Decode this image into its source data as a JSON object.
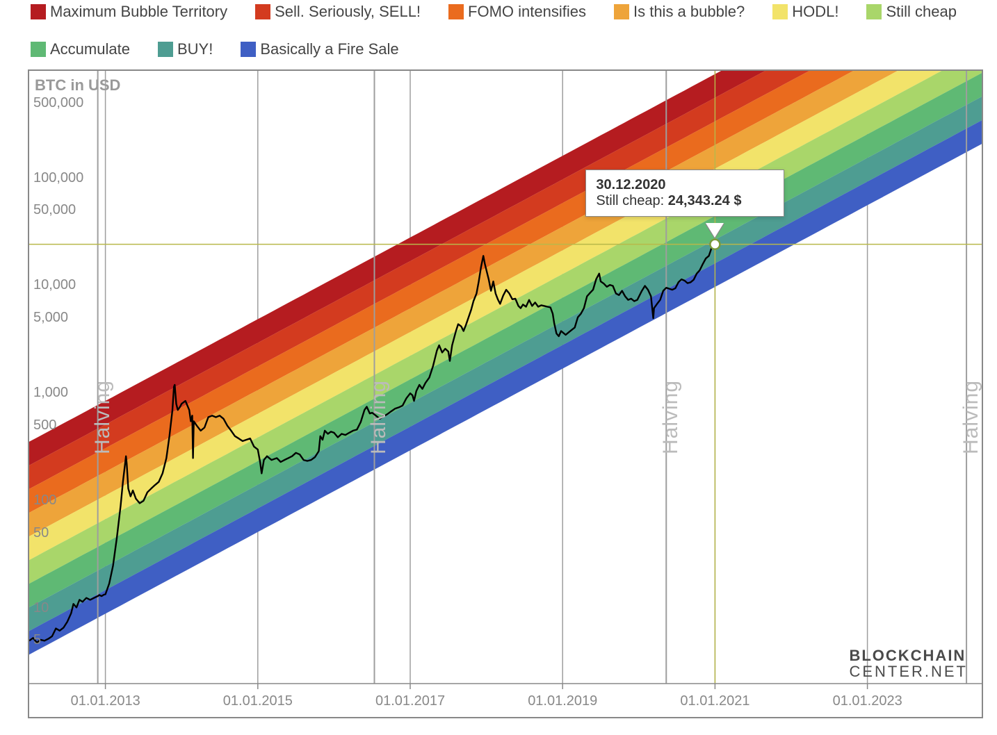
{
  "chart": {
    "type": "rainbow-log-bands",
    "axis_title": "BTC in USD",
    "background_color": "#ffffff",
    "grid_color": "#9e9e9e",
    "border_color": "#888888",
    "crosshair_color": "#b8b84a",
    "price_line_color": "#000000",
    "price_line_width": 2.4,
    "halving_text": "Halving",
    "halving_color": "#bcbcbc",
    "watermark_line1": "BLOCKCHAIN",
    "watermark_line2": "CENTER.NET",
    "x": {
      "min": 2012.0,
      "max": 2024.5,
      "ticks": [
        2013.0,
        2015.0,
        2017.0,
        2019.0,
        2021.0,
        2023.0
      ],
      "tick_labels": [
        "01.01.2013",
        "01.01.2015",
        "01.01.2017",
        "01.01.2019",
        "01.01.2021",
        "01.01.2023"
      ],
      "halvings": [
        2012.9,
        2016.53,
        2020.36,
        2024.3
      ]
    },
    "y": {
      "log_min": 0.3,
      "log_max": 6.0,
      "ticks": [
        5,
        10,
        50,
        100,
        500,
        1000,
        5000,
        10000,
        50000,
        100000,
        500000
      ],
      "tick_labels": [
        "5",
        "10",
        "50",
        "100",
        "500",
        "1,000",
        "5,000",
        "10,000",
        "50,000",
        "100,000",
        "500,000"
      ]
    },
    "bands": [
      {
        "label": "Maximum Bubble Territory",
        "color": "#b51c20"
      },
      {
        "label": "Sell. Seriously, SELL!",
        "color": "#d33b1f"
      },
      {
        "label": "FOMO intensifies",
        "color": "#ea6b1e"
      },
      {
        "label": "Is this a bubble?",
        "color": "#eea43a"
      },
      {
        "label": "HODL!",
        "color": "#f2e36a"
      },
      {
        "label": "Still cheap",
        "color": "#a9d66a"
      },
      {
        "label": "Accumulate",
        "color": "#5fb974"
      },
      {
        "label": "BUY!",
        "color": "#4e9d92"
      },
      {
        "label": "Basically a Fire Sale",
        "color": "#3f5fc4"
      }
    ],
    "band_regression": {
      "slope_log10_per_year": 0.38,
      "top_intercept_log10_at_2012": 2.55,
      "band_width_log10": 0.22
    },
    "tooltip": {
      "date": "30.12.2020",
      "series_label": "Still cheap",
      "value": "24,343.24 $",
      "x_year": 2021.0,
      "y_value": 24343.24
    },
    "fontsize_tick": 20,
    "fontsize_legend": 22,
    "fontsize_axis_title": 22
  },
  "price_series": [
    [
      2012.0,
      5.0
    ],
    [
      2012.05,
      5.3
    ],
    [
      2012.1,
      4.8
    ],
    [
      2012.15,
      5.1
    ],
    [
      2012.2,
      5.0
    ],
    [
      2012.25,
      5.2
    ],
    [
      2012.3,
      5.5
    ],
    [
      2012.35,
      6.5
    ],
    [
      2012.4,
      6.2
    ],
    [
      2012.45,
      6.6
    ],
    [
      2012.5,
      7.5
    ],
    [
      2012.55,
      9.0
    ],
    [
      2012.58,
      11.0
    ],
    [
      2012.62,
      10.2
    ],
    [
      2012.66,
      12.0
    ],
    [
      2012.7,
      11.5
    ],
    [
      2012.75,
      12.5
    ],
    [
      2012.8,
      12.0
    ],
    [
      2012.85,
      12.5
    ],
    [
      2012.9,
      13.0
    ],
    [
      2012.92,
      13.3
    ],
    [
      2012.95,
      13.0
    ],
    [
      2012.98,
      13.4
    ],
    [
      2013.0,
      13.5
    ],
    [
      2013.05,
      17.0
    ],
    [
      2013.1,
      25.0
    ],
    [
      2013.15,
      45.0
    ],
    [
      2013.2,
      90.0
    ],
    [
      2013.23,
      150.0
    ],
    [
      2013.27,
      260.0
    ],
    [
      2013.28,
      220.0
    ],
    [
      2013.3,
      130.0
    ],
    [
      2013.33,
      110.0
    ],
    [
      2013.36,
      125.0
    ],
    [
      2013.4,
      105.0
    ],
    [
      2013.45,
      95.0
    ],
    [
      2013.5,
      100.0
    ],
    [
      2013.55,
      120.0
    ],
    [
      2013.6,
      130.0
    ],
    [
      2013.65,
      140.0
    ],
    [
      2013.7,
      150.0
    ],
    [
      2013.75,
      180.0
    ],
    [
      2013.8,
      250.0
    ],
    [
      2013.84,
      400.0
    ],
    [
      2013.88,
      700.0
    ],
    [
      2013.9,
      1150.0
    ],
    [
      2013.91,
      1200.0
    ],
    [
      2013.93,
      800.0
    ],
    [
      2013.95,
      700.0
    ],
    [
      2013.98,
      750.0
    ],
    [
      2014.0,
      800.0
    ],
    [
      2014.05,
      850.0
    ],
    [
      2014.1,
      700.0
    ],
    [
      2014.12,
      550.0
    ],
    [
      2014.14,
      620.0
    ],
    [
      2014.15,
      250.0
    ],
    [
      2014.16,
      550.0
    ],
    [
      2014.2,
      500.0
    ],
    [
      2014.25,
      450.0
    ],
    [
      2014.3,
      480.0
    ],
    [
      2014.35,
      600.0
    ],
    [
      2014.4,
      620.0
    ],
    [
      2014.45,
      600.0
    ],
    [
      2014.5,
      620.0
    ],
    [
      2014.55,
      580.0
    ],
    [
      2014.6,
      500.0
    ],
    [
      2014.65,
      450.0
    ],
    [
      2014.7,
      400.0
    ],
    [
      2014.75,
      380.0
    ],
    [
      2014.8,
      360.0
    ],
    [
      2014.85,
      370.0
    ],
    [
      2014.9,
      380.0
    ],
    [
      2014.95,
      320.0
    ],
    [
      2015.0,
      300.0
    ],
    [
      2015.03,
      230.0
    ],
    [
      2015.05,
      180.0
    ],
    [
      2015.08,
      240.0
    ],
    [
      2015.12,
      260.0
    ],
    [
      2015.18,
      240.0
    ],
    [
      2015.25,
      250.0
    ],
    [
      2015.3,
      230.0
    ],
    [
      2015.35,
      240.0
    ],
    [
      2015.4,
      250.0
    ],
    [
      2015.45,
      260.0
    ],
    [
      2015.5,
      280.0
    ],
    [
      2015.55,
      270.0
    ],
    [
      2015.6,
      240.0
    ],
    [
      2015.65,
      235.0
    ],
    [
      2015.7,
      240.0
    ],
    [
      2015.75,
      255.0
    ],
    [
      2015.8,
      290.0
    ],
    [
      2015.82,
      400.0
    ],
    [
      2015.85,
      370.0
    ],
    [
      2015.88,
      450.0
    ],
    [
      2015.92,
      420.0
    ],
    [
      2015.96,
      440.0
    ],
    [
      2016.0,
      430.0
    ],
    [
      2016.05,
      390.0
    ],
    [
      2016.1,
      420.0
    ],
    [
      2016.15,
      410.0
    ],
    [
      2016.2,
      430.0
    ],
    [
      2016.25,
      450.0
    ],
    [
      2016.3,
      460.0
    ],
    [
      2016.35,
      540.0
    ],
    [
      2016.4,
      700.0
    ],
    [
      2016.43,
      750.0
    ],
    [
      2016.47,
      650.0
    ],
    [
      2016.5,
      660.0
    ],
    [
      2016.55,
      620.0
    ],
    [
      2016.6,
      580.0
    ],
    [
      2016.65,
      610.0
    ],
    [
      2016.7,
      640.0
    ],
    [
      2016.75,
      680.0
    ],
    [
      2016.8,
      720.0
    ],
    [
      2016.85,
      740.0
    ],
    [
      2016.9,
      770.0
    ],
    [
      2016.95,
      900.0
    ],
    [
      2017.0,
      1000.0
    ],
    [
      2017.03,
      960.0
    ],
    [
      2017.05,
      850.0
    ],
    [
      2017.08,
      1050.0
    ],
    [
      2017.12,
      1200.0
    ],
    [
      2017.16,
      1100.0
    ],
    [
      2017.2,
      1250.0
    ],
    [
      2017.25,
      1400.0
    ],
    [
      2017.3,
      1800.0
    ],
    [
      2017.35,
      2500.0
    ],
    [
      2017.38,
      2800.0
    ],
    [
      2017.42,
      2400.0
    ],
    [
      2017.46,
      2600.0
    ],
    [
      2017.5,
      2450.0
    ],
    [
      2017.52,
      2000.0
    ],
    [
      2017.55,
      2800.0
    ],
    [
      2017.6,
      3800.0
    ],
    [
      2017.63,
      4400.0
    ],
    [
      2017.67,
      4200.0
    ],
    [
      2017.7,
      3800.0
    ],
    [
      2017.73,
      4300.0
    ],
    [
      2017.77,
      5200.0
    ],
    [
      2017.8,
      6000.0
    ],
    [
      2017.83,
      7200.0
    ],
    [
      2017.87,
      8500.0
    ],
    [
      2017.9,
      11000.0
    ],
    [
      2017.93,
      15000.0
    ],
    [
      2017.96,
      19000.0
    ],
    [
      2017.98,
      16000.0
    ],
    [
      2018.0,
      14000.0
    ],
    [
      2018.03,
      11500.0
    ],
    [
      2018.06,
      9000.0
    ],
    [
      2018.09,
      11000.0
    ],
    [
      2018.12,
      8500.0
    ],
    [
      2018.15,
      7500.0
    ],
    [
      2018.18,
      6800.0
    ],
    [
      2018.22,
      8100.0
    ],
    [
      2018.26,
      9200.0
    ],
    [
      2018.3,
      8500.0
    ],
    [
      2018.34,
      7500.0
    ],
    [
      2018.38,
      7600.0
    ],
    [
      2018.42,
      6500.0
    ],
    [
      2018.45,
      6200.0
    ],
    [
      2018.48,
      6700.0
    ],
    [
      2018.52,
      6400.0
    ],
    [
      2018.56,
      7400.0
    ],
    [
      2018.6,
      6500.0
    ],
    [
      2018.64,
      7000.0
    ],
    [
      2018.68,
      6400.0
    ],
    [
      2018.72,
      6600.0
    ],
    [
      2018.76,
      6500.0
    ],
    [
      2018.8,
      6400.0
    ],
    [
      2018.84,
      6300.0
    ],
    [
      2018.87,
      5500.0
    ],
    [
      2018.89,
      4500.0
    ],
    [
      2018.92,
      3600.0
    ],
    [
      2018.95,
      3400.0
    ],
    [
      2018.98,
      3800.0
    ],
    [
      2019.0,
      3700.0
    ],
    [
      2019.04,
      3500.0
    ],
    [
      2019.08,
      3700.0
    ],
    [
      2019.12,
      3900.0
    ],
    [
      2019.16,
      4100.0
    ],
    [
      2019.2,
      5100.0
    ],
    [
      2019.24,
      5500.0
    ],
    [
      2019.28,
      6200.0
    ],
    [
      2019.32,
      8000.0
    ],
    [
      2019.36,
      8600.0
    ],
    [
      2019.4,
      9200.0
    ],
    [
      2019.44,
      11500.0
    ],
    [
      2019.48,
      13000.0
    ],
    [
      2019.5,
      11000.0
    ],
    [
      2019.54,
      10500.0
    ],
    [
      2019.58,
      9800.0
    ],
    [
      2019.62,
      10200.0
    ],
    [
      2019.66,
      10000.0
    ],
    [
      2019.7,
      8500.0
    ],
    [
      2019.74,
      8200.0
    ],
    [
      2019.78,
      9000.0
    ],
    [
      2019.82,
      8000.0
    ],
    [
      2019.86,
      7400.0
    ],
    [
      2019.9,
      7600.0
    ],
    [
      2019.94,
      7200.0
    ],
    [
      2019.98,
      7400.0
    ],
    [
      2020.0,
      7900.0
    ],
    [
      2020.04,
      9000.0
    ],
    [
      2020.08,
      10000.0
    ],
    [
      2020.12,
      9200.0
    ],
    [
      2020.16,
      8000.0
    ],
    [
      2020.19,
      5000.0
    ],
    [
      2020.2,
      6200.0
    ],
    [
      2020.24,
      6800.0
    ],
    [
      2020.28,
      7400.0
    ],
    [
      2020.32,
      9000.0
    ],
    [
      2020.36,
      9600.0
    ],
    [
      2020.4,
      9400.0
    ],
    [
      2020.44,
      9200.0
    ],
    [
      2020.48,
      9500.0
    ],
    [
      2020.52,
      10800.0
    ],
    [
      2020.56,
      11500.0
    ],
    [
      2020.6,
      11200.0
    ],
    [
      2020.64,
      10600.0
    ],
    [
      2020.68,
      10800.0
    ],
    [
      2020.72,
      11400.0
    ],
    [
      2020.76,
      13000.0
    ],
    [
      2020.8,
      14000.0
    ],
    [
      2020.84,
      16000.0
    ],
    [
      2020.88,
      18000.0
    ],
    [
      2020.92,
      19000.0
    ],
    [
      2020.95,
      22000.0
    ],
    [
      2020.98,
      25000.0
    ],
    [
      2021.0,
      24343.24
    ]
  ]
}
